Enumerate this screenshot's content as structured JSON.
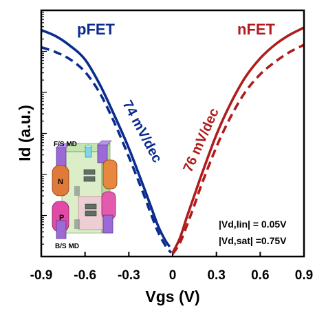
{
  "chart_data": {
    "type": "line",
    "xlabel": "Vgs (V)",
    "ylabel": "Id (a.u.)",
    "x_ticks": [
      "-0.9",
      "-0.6",
      "-0.3",
      "0",
      "0.3",
      "0.6",
      "0.9"
    ],
    "xlim": [
      -0.9,
      0.9
    ],
    "y_scale": "log",
    "grid": false,
    "series": [
      {
        "name": "pFET",
        "color": "#0b2c8f",
        "curves": [
          {
            "condition": "|Vd,sat| =0.75V",
            "style": "solid",
            "x": [
              -0.9,
              -0.8,
              -0.7,
              -0.6,
              -0.5,
              -0.4,
              -0.3,
              -0.2,
              -0.15,
              -0.1,
              -0.05,
              -0.02
            ],
            "y": [
              0.92,
              0.895,
              0.855,
              0.8,
              0.7,
              0.575,
              0.44,
              0.285,
              0.205,
              0.125,
              0.065,
              0.04
            ]
          },
          {
            "condition": "|Vd,lin| = 0.05V",
            "style": "dashed",
            "x": [
              -0.9,
              -0.8,
              -0.7,
              -0.6,
              -0.5,
              -0.4,
              -0.3,
              -0.2,
              -0.15,
              -0.1,
              -0.05,
              -0.01
            ],
            "y": [
              0.85,
              0.83,
              0.8,
              0.75,
              0.665,
              0.545,
              0.405,
              0.255,
              0.175,
              0.1,
              0.045,
              0.015
            ]
          }
        ],
        "slope": "74 mV/dec"
      },
      {
        "name": "nFET",
        "color": "#b01c1c",
        "curves": [
          {
            "condition": "|Vd,sat| =0.75V",
            "style": "solid",
            "x": [
              0.0,
              0.05,
              0.1,
              0.15,
              0.2,
              0.3,
              0.4,
              0.5,
              0.6,
              0.7,
              0.8,
              0.9
            ],
            "y": [
              0.015,
              0.075,
              0.165,
              0.25,
              0.335,
              0.495,
              0.625,
              0.73,
              0.805,
              0.86,
              0.9,
              0.93
            ]
          },
          {
            "condition": "|Vd,lin| = 0.05V",
            "style": "dashed",
            "x": [
              0.0,
              0.05,
              0.1,
              0.15,
              0.2,
              0.3,
              0.4,
              0.5,
              0.6,
              0.7,
              0.8,
              0.9
            ],
            "y": [
              0.01,
              0.055,
              0.13,
              0.21,
              0.295,
              0.445,
              0.57,
              0.67,
              0.74,
              0.79,
              0.83,
              0.86
            ]
          }
        ],
        "slope": "76 mV/dec"
      }
    ],
    "annotations": [
      "|Vd,lin| = 0.05V",
      "|Vd,sat| =0.75V"
    ],
    "inset_labels": [
      "F/S MD",
      "B/S MD",
      "N",
      "P"
    ]
  }
}
